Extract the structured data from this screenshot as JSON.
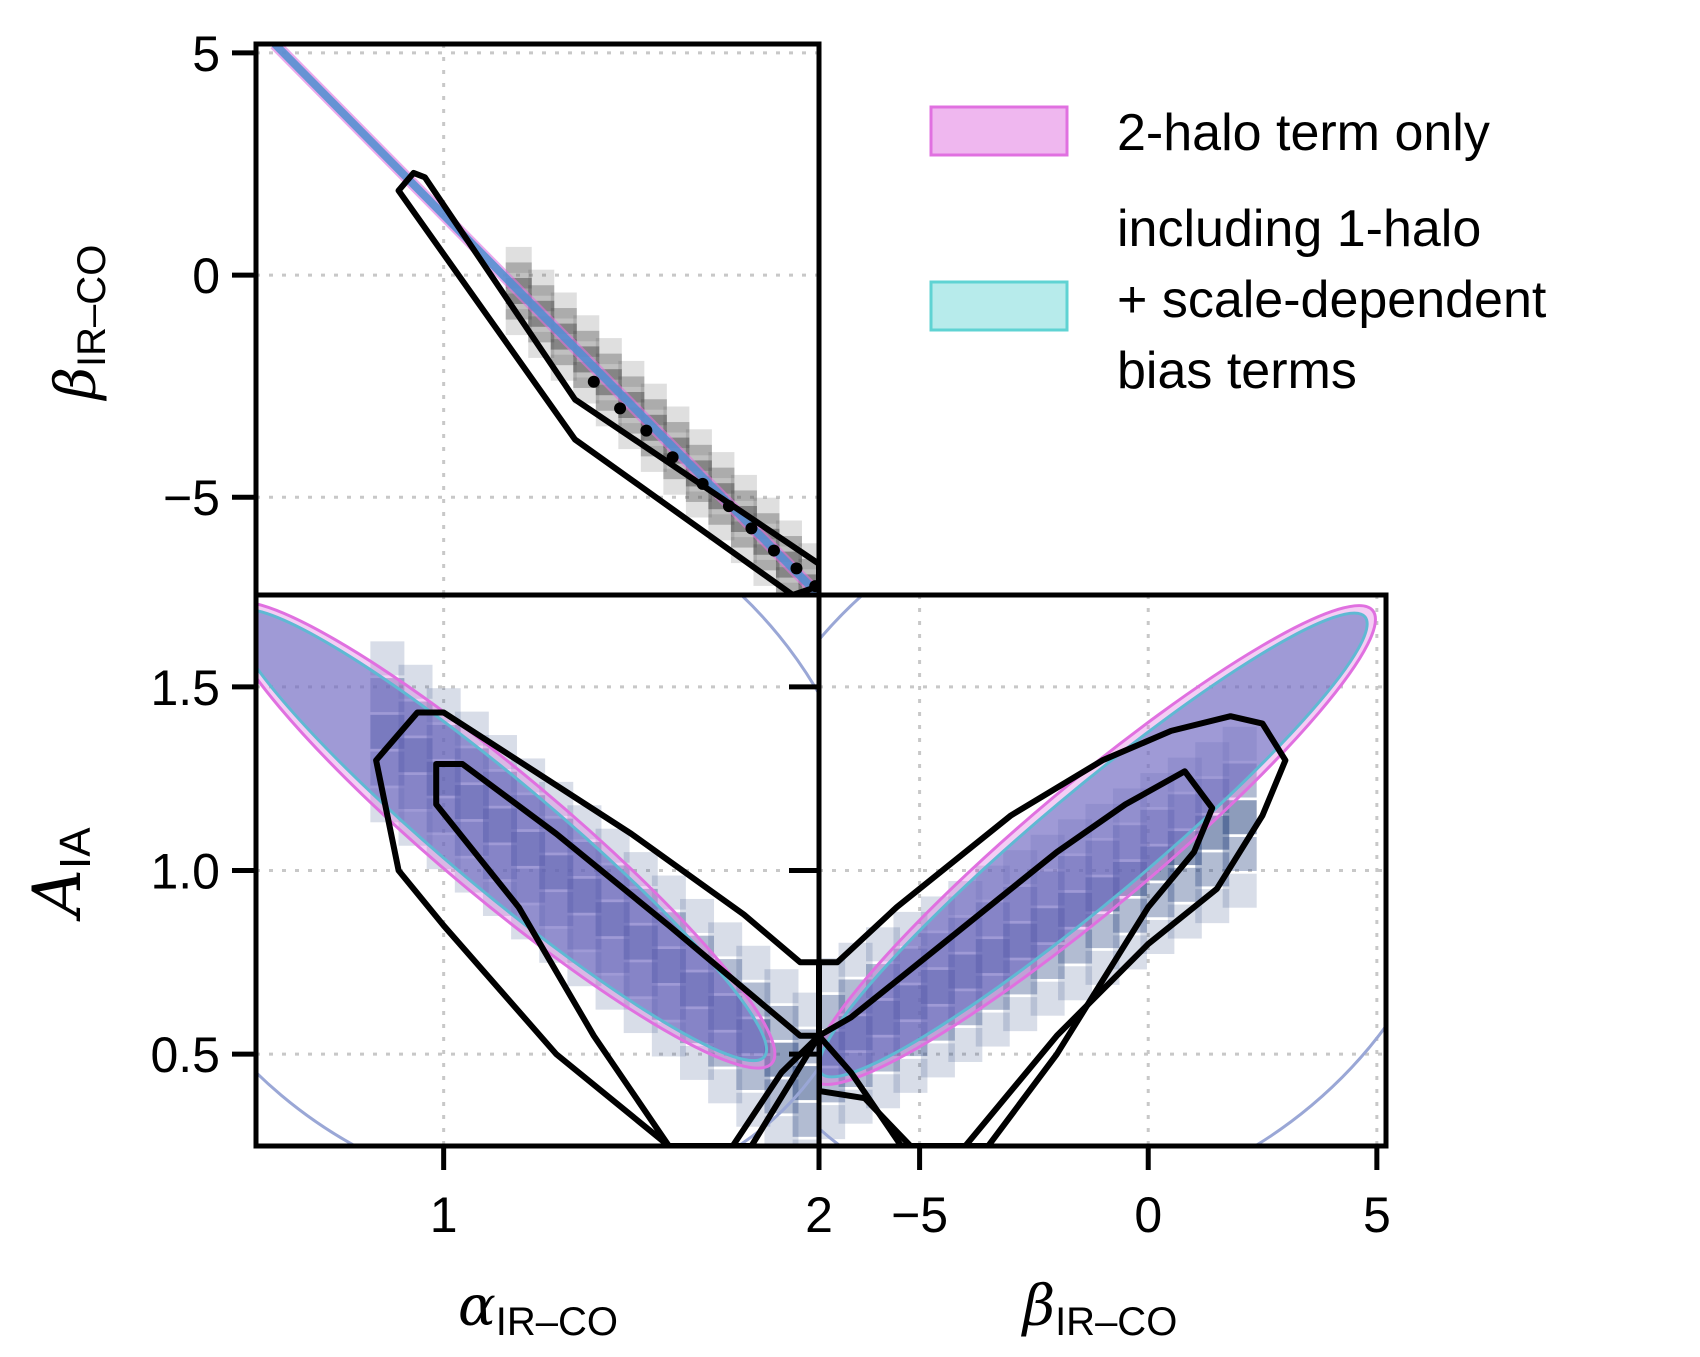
{
  "chart_data": {
    "type": "contour-triangle",
    "legend": [
      {
        "label_lines": [
          "2-halo term only"
        ],
        "color": "#e070e0"
      },
      {
        "label_lines": [
          "including 1-halo",
          "+ scale-dependent",
          "bias terms"
        ],
        "color": "#5fd3d3"
      }
    ],
    "panels": [
      {
        "id": "beta_vs_alpha",
        "x_param": "alpha",
        "y_param": "beta",
        "xlim": [
          0.5,
          2.0
        ],
        "ylim": [
          -7.2,
          5.2
        ],
        "yticks": [
          5,
          0,
          -5
        ],
        "ytick_labels": [
          "5",
          "0",
          "−5"
        ],
        "ylabel_main": "β",
        "ylabel_sub": "IR–CO",
        "degeneracy_line": [
          [
            0.55,
            5.2
          ],
          [
            2.0,
            -7.2
          ]
        ],
        "outer_contour": [
          [
            0.92,
            2.3
          ],
          [
            0.95,
            2.2
          ],
          [
            1.35,
            -2.8
          ],
          [
            2.0,
            -6.5
          ],
          [
            2.0,
            -7.0
          ],
          [
            1.93,
            -7.2
          ],
          [
            1.35,
            -3.7
          ],
          [
            0.88,
            1.9
          ]
        ],
        "scatter_points": [
          [
            1.4,
            -2.4
          ],
          [
            1.47,
            -3.0
          ],
          [
            1.54,
            -3.5
          ],
          [
            1.61,
            -4.1
          ],
          [
            1.69,
            -4.7
          ],
          [
            1.76,
            -5.2
          ],
          [
            1.82,
            -5.7
          ],
          [
            1.88,
            -6.2
          ],
          [
            1.94,
            -6.6
          ],
          [
            1.99,
            -7.0
          ]
        ]
      },
      {
        "id": "A_vs_alpha",
        "x_param": "alpha",
        "y_param": "A",
        "xlim": [
          0.5,
          2.0
        ],
        "ylim": [
          0.25,
          1.75
        ],
        "xticks": [
          1,
          2
        ],
        "xtick_labels": [
          "1",
          "2"
        ],
        "yticks": [
          1.5,
          1.0,
          0.5
        ],
        "ytick_labels": [
          "1.5",
          "1.0",
          "0.5"
        ],
        "xlabel_main": "α",
        "xlabel_sub": "IR–CO",
        "ylabel_main": "A",
        "ylabel_sub": "IA",
        "contour_outer": [
          [
            0.82,
            1.3
          ],
          [
            0.93,
            1.43
          ],
          [
            1.0,
            1.43
          ],
          [
            1.5,
            1.1
          ],
          [
            1.8,
            0.88
          ],
          [
            1.95,
            0.75
          ],
          [
            2.0,
            0.75
          ],
          [
            2.0,
            0.55
          ],
          [
            1.82,
            0.25
          ],
          [
            1.6,
            0.25
          ],
          [
            1.3,
            0.5
          ],
          [
            1.0,
            0.85
          ],
          [
            0.88,
            1.0
          ],
          [
            0.82,
            1.3
          ]
        ],
        "contour_inner": [
          [
            0.98,
            1.18
          ],
          [
            0.98,
            1.29
          ],
          [
            1.05,
            1.29
          ],
          [
            1.3,
            1.1
          ],
          [
            1.6,
            0.85
          ],
          [
            1.95,
            0.55
          ],
          [
            2.0,
            0.55
          ],
          [
            1.9,
            0.45
          ],
          [
            1.77,
            0.25
          ],
          [
            1.6,
            0.25
          ],
          [
            1.4,
            0.55
          ],
          [
            1.2,
            0.9
          ],
          [
            0.98,
            1.18
          ]
        ]
      },
      {
        "id": "A_vs_beta",
        "x_param": "beta",
        "y_param": "A",
        "xlim": [
          -7.2,
          5.2
        ],
        "ylim": [
          0.25,
          1.75
        ],
        "xticks": [
          -5,
          0,
          5
        ],
        "xtick_labels": [
          "−5",
          "0",
          "5"
        ],
        "xlabel_main": "β",
        "xlabel_sub": "IR–CO",
        "contour_outer": [
          [
            -7.2,
            0.75
          ],
          [
            -6.8,
            0.75
          ],
          [
            -5.5,
            0.9
          ],
          [
            -3.0,
            1.15
          ],
          [
            -1.0,
            1.3
          ],
          [
            0.5,
            1.38
          ],
          [
            1.8,
            1.42
          ],
          [
            2.5,
            1.4
          ],
          [
            3.0,
            1.3
          ],
          [
            2.5,
            1.15
          ],
          [
            1.5,
            0.95
          ],
          [
            0.0,
            0.8
          ],
          [
            -2.0,
            0.55
          ],
          [
            -4.0,
            0.25
          ],
          [
            -5.4,
            0.25
          ],
          [
            -6.5,
            0.45
          ],
          [
            -7.2,
            0.55
          ]
        ],
        "contour_inner": [
          [
            -7.2,
            0.55
          ],
          [
            -6.5,
            0.6
          ],
          [
            -4.5,
            0.8
          ],
          [
            -2.0,
            1.05
          ],
          [
            -0.5,
            1.18
          ],
          [
            0.8,
            1.27
          ],
          [
            1.4,
            1.17
          ],
          [
            1.0,
            1.05
          ],
          [
            0.0,
            0.9
          ],
          [
            -1.0,
            0.7
          ],
          [
            -2.0,
            0.5
          ],
          [
            -3.5,
            0.25
          ],
          [
            -5.2,
            0.25
          ],
          [
            -6.2,
            0.38
          ],
          [
            -7.2,
            0.4
          ]
        ]
      }
    ]
  }
}
